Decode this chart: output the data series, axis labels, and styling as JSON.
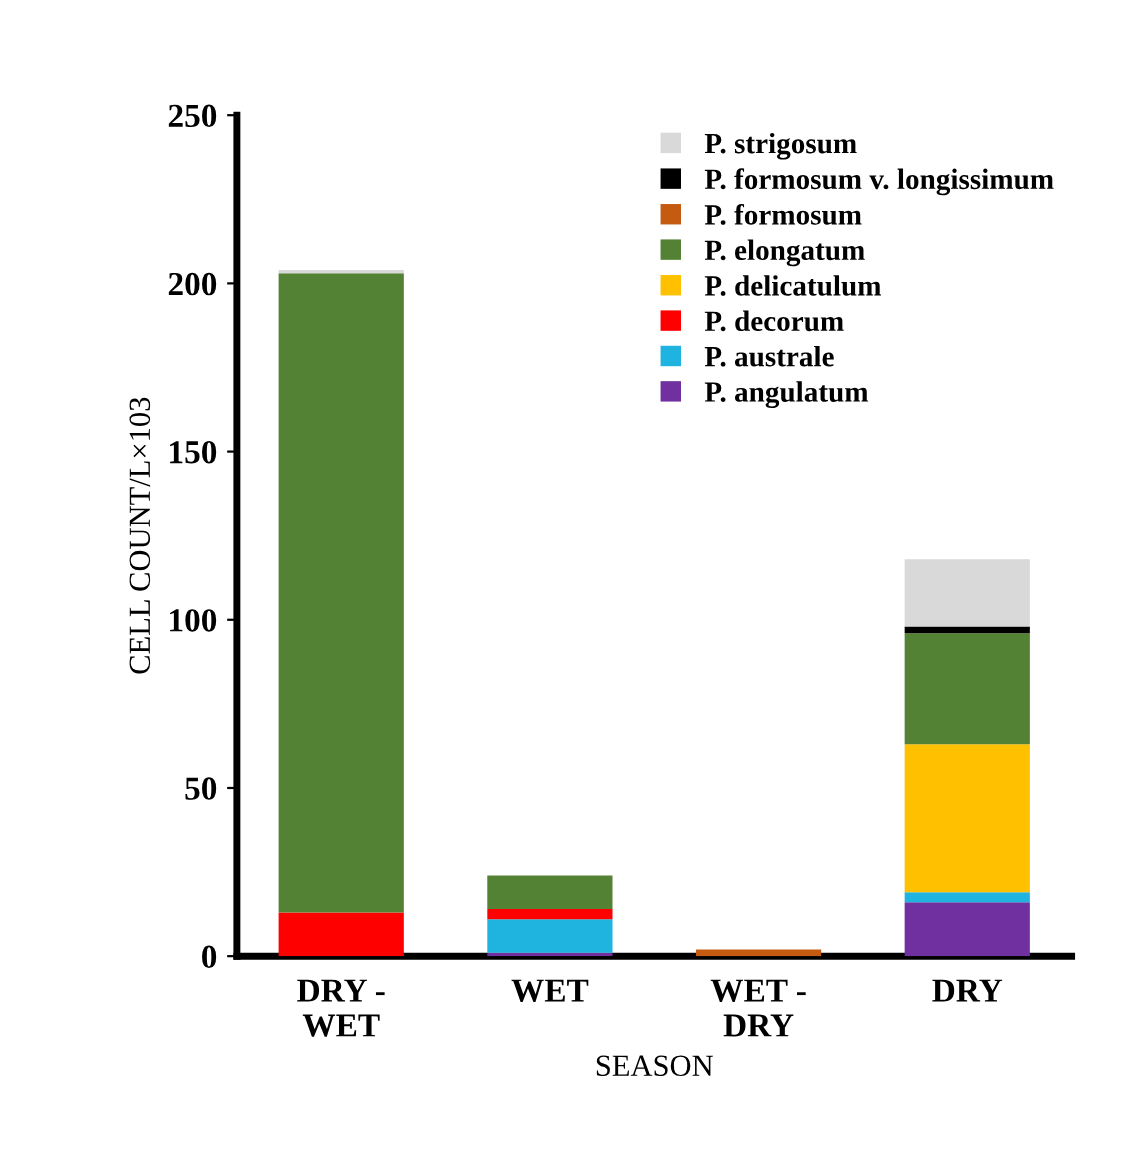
{
  "chart_data": {
    "type": "bar",
    "stacked": true,
    "xlabel": "SEASON",
    "ylabel": "CELL COUNT/L×103",
    "categories": [
      "DRY -\nWET",
      "WET",
      "WET -\nDRY",
      "DRY"
    ],
    "series": [
      {
        "name": "P. angulatum",
        "color": "#7030a0",
        "values": [
          0,
          1,
          0,
          16
        ]
      },
      {
        "name": "P. australe",
        "color": "#1fb4e0",
        "values": [
          0,
          10,
          0,
          3
        ]
      },
      {
        "name": "P. decorum",
        "color": "#ff0000",
        "values": [
          13,
          3,
          0,
          0
        ]
      },
      {
        "name": "P. delicatulum",
        "color": "#ffc000",
        "values": [
          0,
          0,
          0,
          44
        ]
      },
      {
        "name": "P. elongatum",
        "color": "#548235",
        "values": [
          190,
          10,
          0,
          33
        ]
      },
      {
        "name": "P. formosum",
        "color": "#c55a11",
        "values": [
          0,
          0,
          2,
          0
        ]
      },
      {
        "name": "P. formosum v. longissimum",
        "color": "#000000",
        "values": [
          0,
          0,
          0,
          2
        ]
      },
      {
        "name": "P. strigosum",
        "color": "#d9d9d9",
        "values": [
          1,
          0,
          0,
          20
        ]
      }
    ],
    "ylim": [
      0,
      250
    ],
    "yticks": [
      0,
      50,
      100,
      150,
      200,
      250
    ],
    "grid": false,
    "legend": "top right"
  }
}
